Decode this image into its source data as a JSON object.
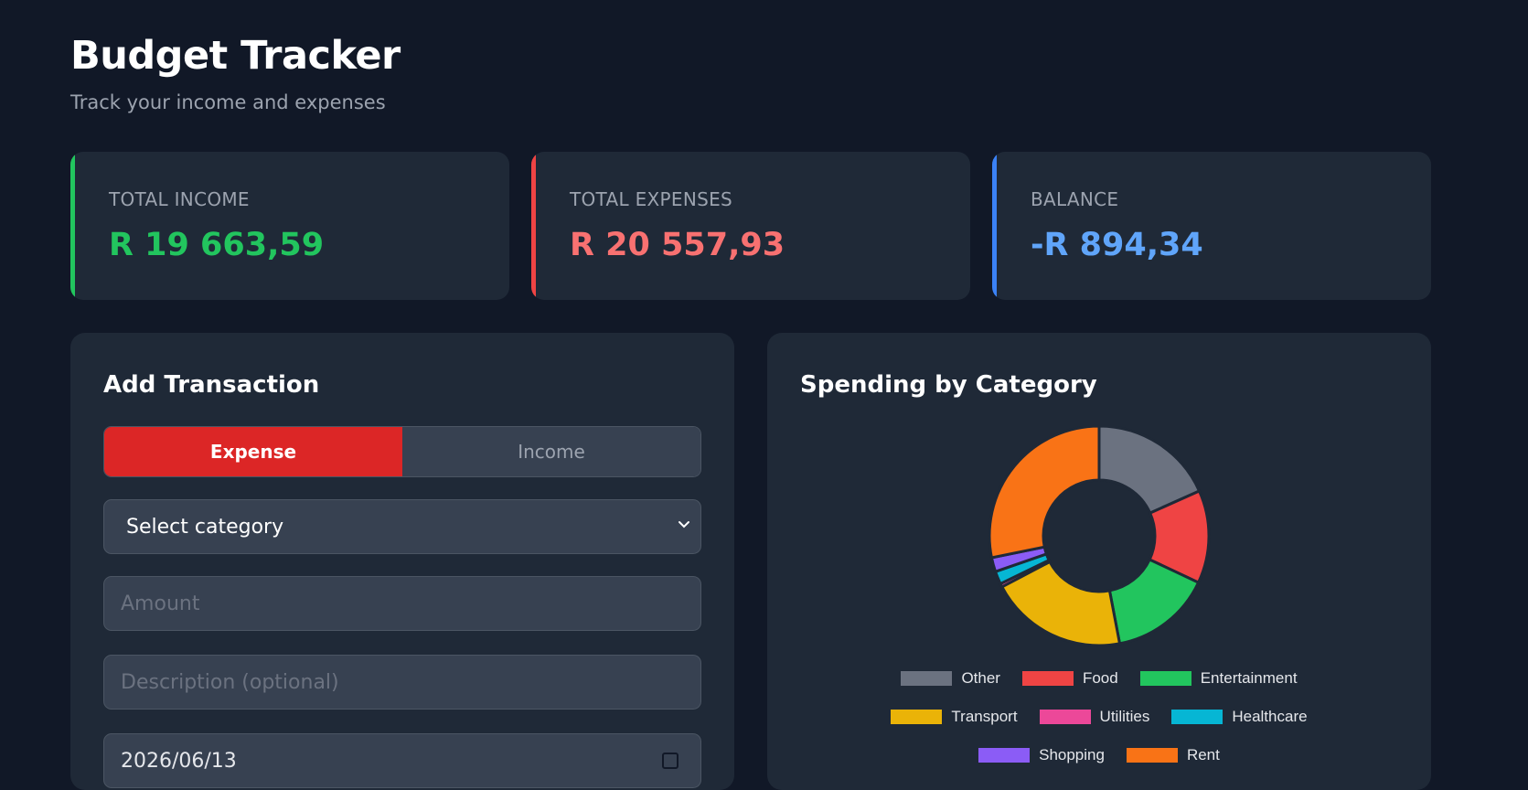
{
  "header": {
    "title": "Budget Tracker",
    "subtitle": "Track your income and expenses"
  },
  "summary": {
    "income": {
      "label": "TOTAL INCOME",
      "value": "R 19 663,59",
      "color": "#22c55e",
      "accent": "#22c55e"
    },
    "expenses": {
      "label": "TOTAL EXPENSES",
      "value": "R 20 557,93",
      "color": "#f87171",
      "accent": "#ef4444"
    },
    "balance": {
      "label": "BALANCE",
      "value": "-R 894,34",
      "color": "#60a5fa",
      "accent": "#3b82f6"
    }
  },
  "form": {
    "title": "Add Transaction",
    "toggle": {
      "expense": "Expense",
      "income": "Income",
      "selected": "Expense"
    },
    "category_select": {
      "value": "Select category",
      "icon": "chevron-down-icon"
    },
    "amount": {
      "placeholder": "Amount",
      "value": ""
    },
    "description": {
      "placeholder": "Description (optional)",
      "value": ""
    },
    "date": {
      "value": "2026/06/13",
      "icon": "calendar-icon"
    }
  },
  "chart": {
    "title": "Spending by Category"
  },
  "chart_data": {
    "type": "pie",
    "variant": "doughnut",
    "categories": [
      "Other",
      "Food",
      "Entertainment",
      "Transport",
      "Utilities",
      "Healthcare",
      "Shopping",
      "Rent"
    ],
    "values": [
      18.3,
      13.7,
      15.0,
      20.3,
      0.5,
      1.9,
      2.1,
      28.2
    ],
    "colors": [
      "#6b7280",
      "#ef4444",
      "#22c55e",
      "#eab308",
      "#ec4899",
      "#06b6d4",
      "#8b5cf6",
      "#f97316"
    ],
    "legend": "bottom"
  }
}
